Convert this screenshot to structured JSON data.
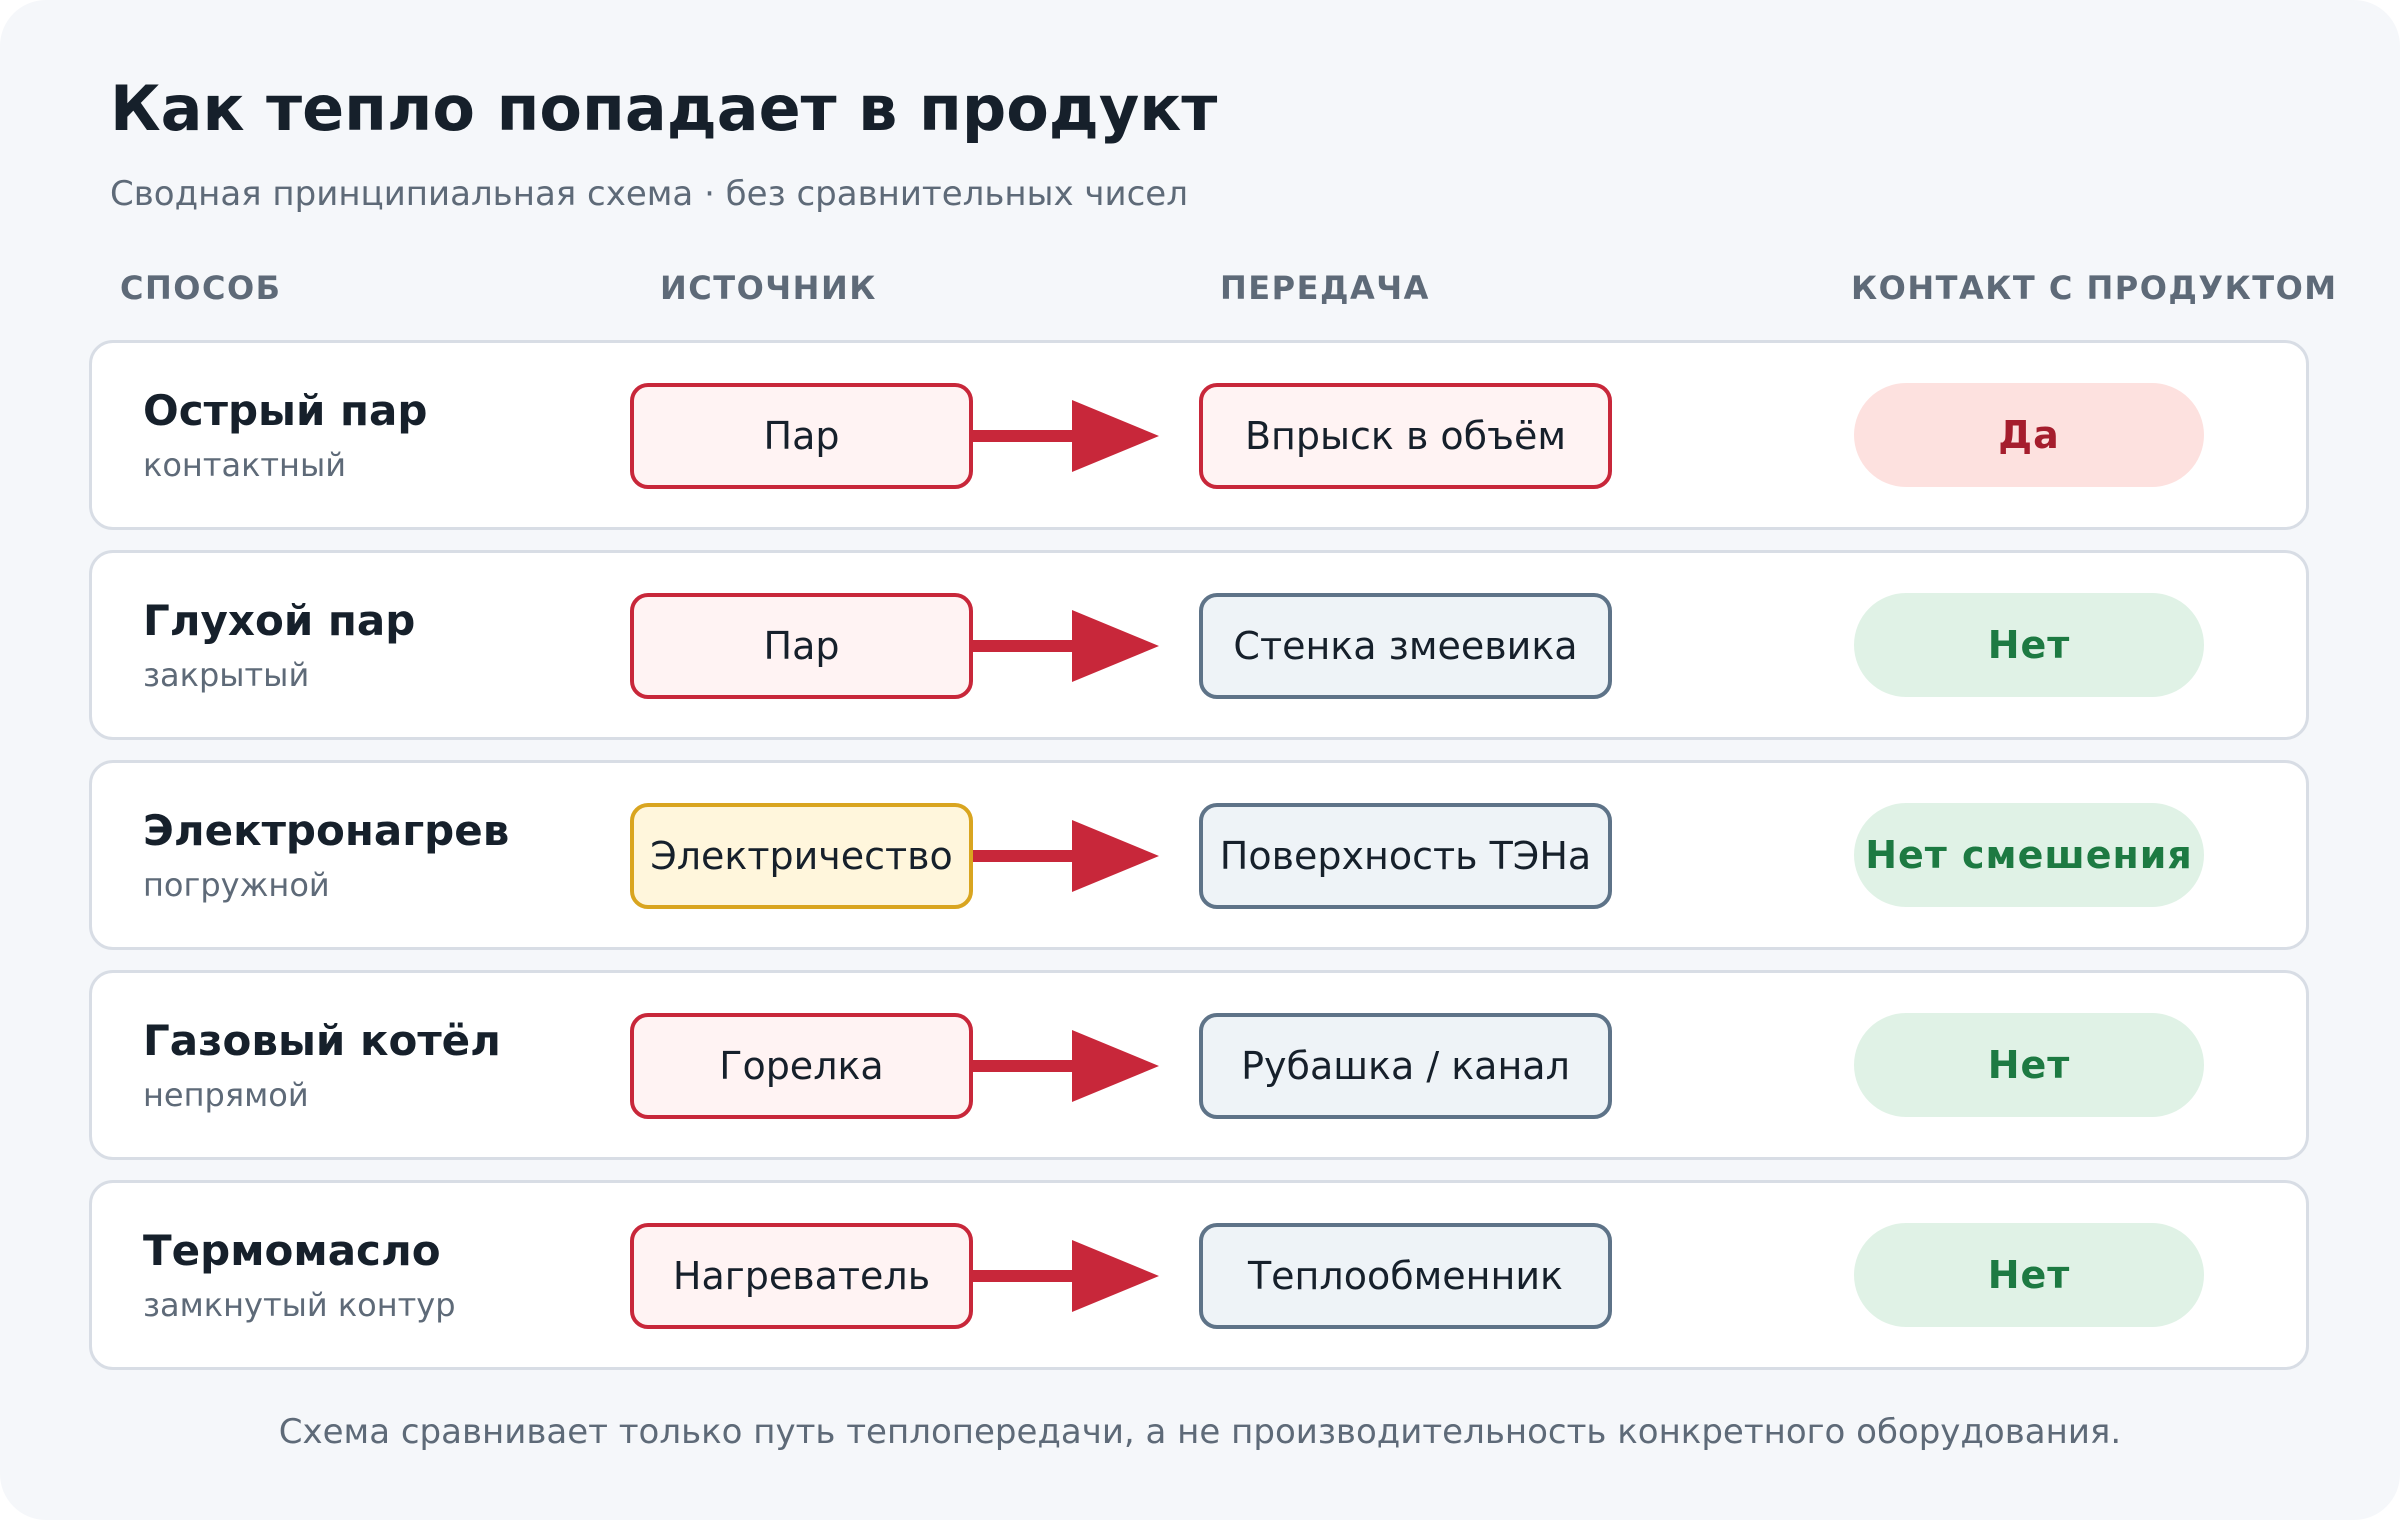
{
  "title": "Как тепло попадает в продукт",
  "subtitle": "Сводная принципиальная схема · без сравнительных чисел",
  "columns": {
    "method": "СПОСОБ",
    "source": "ИСТОЧНИК",
    "transfer": "ПЕРЕДАЧА",
    "contact": "КОНТАКТ С ПРОДУКТОМ"
  },
  "rows": [
    {
      "name": "Острый пар",
      "subtitle": "контактный",
      "source": "Пар",
      "source_color": "#c8273a",
      "transfer": "Впрыск в объём",
      "transfer_color": "#c8273a",
      "contact": "Да",
      "contact_status": "yes"
    },
    {
      "name": "Глухой пар",
      "subtitle": "закрытый",
      "source": "Пар",
      "source_color": "#c8273a",
      "transfer": "Стенка змеевика",
      "transfer_color": "#5e7388",
      "contact": "Нет",
      "contact_status": "no"
    },
    {
      "name": "Электронагрев",
      "subtitle": "погружной",
      "source": "Электричество",
      "source_color": "#d9a520",
      "transfer": "Поверхность ТЭНа",
      "transfer_color": "#5e7388",
      "contact": "Нет смешения",
      "contact_status": "no"
    },
    {
      "name": "Газовый котёл",
      "subtitle": "непрямой",
      "source": "Горелка",
      "source_color": "#c8273a",
      "transfer": "Рубашка / канал",
      "transfer_color": "#5e7388",
      "contact": "Нет",
      "contact_status": "no"
    },
    {
      "name": "Термомасло",
      "subtitle": "замкнутый контур",
      "source": "Нагреватель",
      "source_color": "#c8273a",
      "transfer": "Теплообменник",
      "transfer_color": "#5e7388",
      "contact": "Нет",
      "contact_status": "no"
    }
  ],
  "colors": {
    "accent_red": "#c8273a",
    "contact_yes_bg": "#fde1df",
    "contact_yes_text": "#a51d2d",
    "contact_no_bg": "#e0f2e6",
    "contact_no_text": "#1d7a42"
  },
  "footnote": "Схема сравнивает только путь теплопередачи, а не производительность конкретного оборудования."
}
